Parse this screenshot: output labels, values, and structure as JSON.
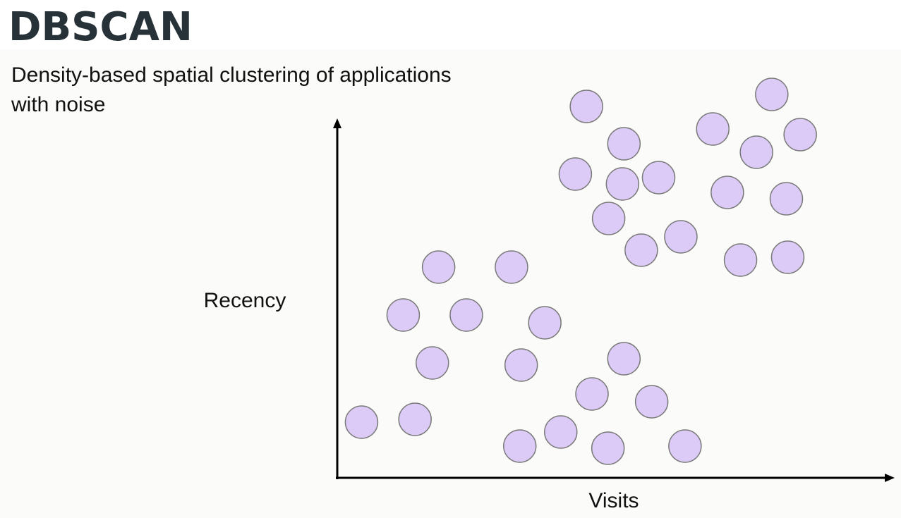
{
  "header": {
    "title": "DBSCAN",
    "subtitle": "Density-based spatial clustering of applications with noise"
  },
  "chart_data": {
    "type": "scatter",
    "x_label": "Visits",
    "y_label": "Recency",
    "color": "#dccbf6",
    "xlim": [
      0,
      80
    ],
    "ylim": [
      0,
      55
    ],
    "x": [
      35.9,
      62.6,
      41.3,
      54.1,
      66.7,
      60.4,
      34.3,
      41.1,
      46.3,
      56.2,
      64.7,
      39.1,
      49.5,
      43.8,
      58.1,
      64.9,
      14.6,
      25.1,
      9.5,
      18.6,
      29.9,
      13.7,
      26.5,
      41.3,
      36.7,
      45.3,
      3.5,
      11.2,
      32.2,
      26.3,
      39.0,
      50.1
    ],
    "values": [
      52.7,
      54.4,
      47.4,
      49.5,
      48.7,
      46.2,
      43.1,
      41.7,
      42.6,
      40.5,
      39.6,
      36.8,
      34.2,
      32.3,
      30.9,
      31.3,
      29.9,
      29.9,
      23.1,
      23.1,
      22.0,
      16.3,
      16.0,
      16.9,
      11.9,
      10.8,
      7.9,
      8.3,
      6.5,
      4.5,
      4.2,
      4.5
    ]
  }
}
